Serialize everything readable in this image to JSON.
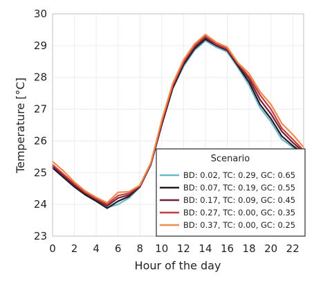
{
  "chart_data": {
    "type": "line",
    "xlabel": "Hour of the day",
    "ylabel": "Temperature [°C]",
    "xlim": [
      0,
      23
    ],
    "ylim": [
      23,
      30
    ],
    "x_ticks": [
      0,
      2,
      4,
      6,
      8,
      10,
      12,
      14,
      16,
      18,
      20,
      22
    ],
    "y_ticks": [
      23,
      24,
      25,
      26,
      27,
      28,
      29,
      30
    ],
    "grid": true,
    "legend_title": "Scenario",
    "legend_position": "bottom-right",
    "x": [
      0,
      1,
      2,
      3,
      4,
      5,
      6,
      7,
      8,
      9,
      10,
      11,
      12,
      13,
      14,
      15,
      16,
      17,
      18,
      19,
      20,
      21,
      22,
      23
    ],
    "series": [
      {
        "name": "BD: 0.02, TC: 0.29, GC: 0.65",
        "color": "#6bb8cc",
        "values": [
          25.15,
          24.85,
          24.55,
          24.3,
          24.1,
          23.9,
          24.0,
          24.2,
          24.55,
          25.25,
          26.5,
          27.65,
          28.35,
          28.85,
          29.15,
          28.95,
          28.8,
          28.3,
          27.75,
          27.05,
          26.6,
          26.05,
          25.8,
          25.55
        ]
      },
      {
        "name": "BD: 0.07, TC: 0.19, GC: 0.55",
        "color": "#1f1b1d",
        "values": [
          25.15,
          24.85,
          24.55,
          24.3,
          24.1,
          23.88,
          24.1,
          24.25,
          24.55,
          25.25,
          26.5,
          27.65,
          28.4,
          28.9,
          29.2,
          29.0,
          28.85,
          28.35,
          27.85,
          27.15,
          26.7,
          26.15,
          25.85,
          25.6
        ]
      },
      {
        "name": "BD: 0.17, TC: 0.09, GC: 0.45",
        "color": "#6e1f3a",
        "values": [
          25.2,
          24.9,
          24.6,
          24.35,
          24.15,
          23.95,
          24.2,
          24.3,
          24.55,
          25.25,
          26.55,
          27.7,
          28.45,
          28.95,
          29.25,
          29.02,
          28.87,
          28.4,
          27.95,
          27.3,
          26.85,
          26.3,
          25.95,
          25.65
        ]
      },
      {
        "name": "BD: 0.27, TC: 0.00, GC: 0.35",
        "color": "#c93a3f",
        "values": [
          25.25,
          24.95,
          24.65,
          24.38,
          24.18,
          24.0,
          24.28,
          24.35,
          24.6,
          25.3,
          26.6,
          27.75,
          28.5,
          29.0,
          29.3,
          29.05,
          28.9,
          28.42,
          28.02,
          27.45,
          27.0,
          26.4,
          26.05,
          25.7
        ]
      },
      {
        "name": "BD: 0.37, TC: 0.00, GC: 0.25",
        "color": "#ef8a4a",
        "values": [
          25.35,
          25.05,
          24.7,
          24.42,
          24.22,
          24.05,
          24.38,
          24.4,
          24.6,
          25.3,
          26.65,
          27.8,
          28.55,
          29.05,
          29.35,
          29.1,
          28.95,
          28.45,
          28.12,
          27.55,
          27.15,
          26.55,
          26.2,
          25.8
        ]
      }
    ]
  }
}
